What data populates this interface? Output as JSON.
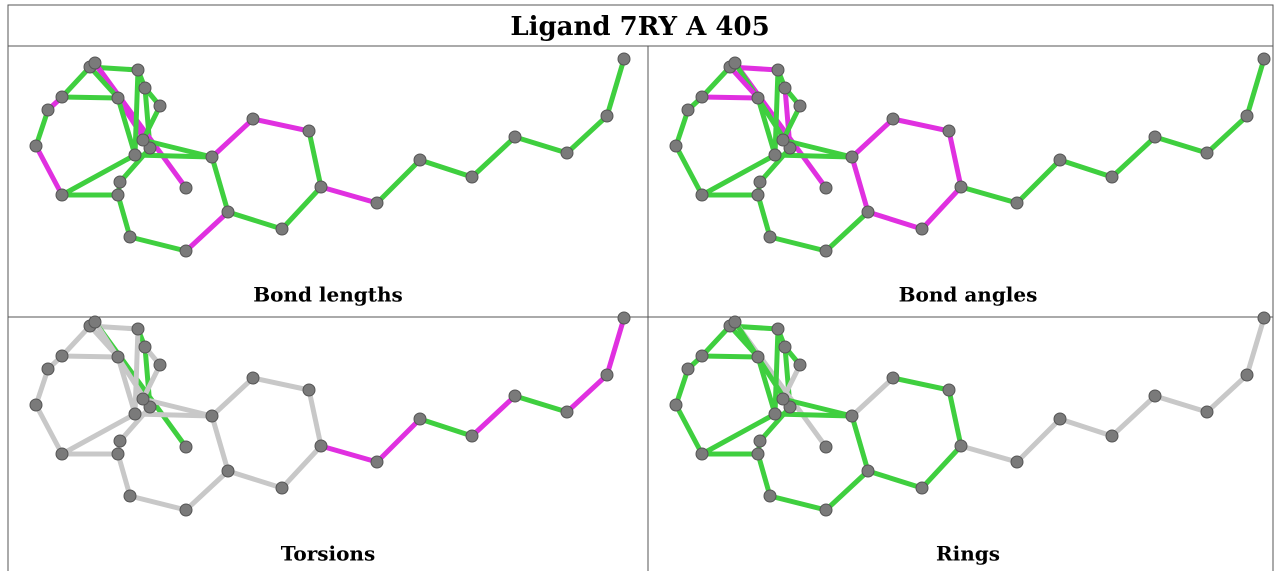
{
  "title": "Ligand 7RY A 405",
  "panels": [
    {
      "caption": "Bond lengths"
    },
    {
      "caption": "Bond angles"
    },
    {
      "caption": "Torsions"
    },
    {
      "caption": "Rings"
    }
  ]
}
